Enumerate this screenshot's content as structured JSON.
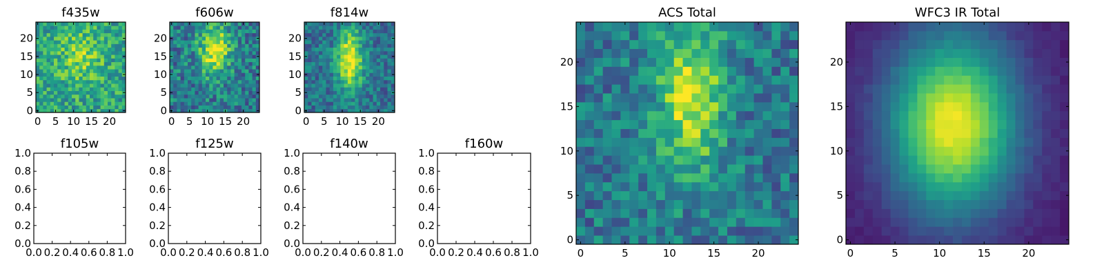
{
  "chart_data": [
    {
      "id": "f435w",
      "type": "heatmap",
      "title": "f435w",
      "colormap": "viridis",
      "grid_size": 25,
      "xticks": [
        "0",
        "5",
        "10",
        "15",
        "20"
      ],
      "yticks": [
        "0",
        "5",
        "10",
        "15",
        "20"
      ],
      "seed": 435,
      "peak_x": 12,
      "peak_y": 15,
      "signal": 0.25,
      "noise": 0.42,
      "base": 0.58,
      "spread_x": 4,
      "spread_y": 5
    },
    {
      "id": "f606w",
      "type": "heatmap",
      "title": "f606w",
      "colormap": "viridis",
      "grid_size": 25,
      "xticks": [
        "0",
        "5",
        "10",
        "15",
        "20"
      ],
      "yticks": [
        "0",
        "5",
        "10",
        "15",
        "20"
      ],
      "seed": 606,
      "peak_x": 12,
      "peak_y": 17,
      "signal": 0.55,
      "noise": 0.45,
      "base": 0.42,
      "spread_x": 3,
      "spread_y": 5
    },
    {
      "id": "f814w",
      "type": "heatmap",
      "title": "f814w",
      "colormap": "viridis",
      "grid_size": 25,
      "xticks": [
        "0",
        "5",
        "10",
        "15",
        "20"
      ],
      "yticks": [
        "0",
        "5",
        "10",
        "15",
        "20"
      ],
      "seed": 814,
      "peak_x": 12,
      "peak_y": 14,
      "signal": 0.65,
      "noise": 0.35,
      "base": 0.38,
      "spread_x": 2.5,
      "spread_y": 6
    },
    {
      "id": "f105w",
      "type": "empty",
      "title": "f105w",
      "xticks": [
        "0.0",
        "0.2",
        "0.4",
        "0.6",
        "0.8",
        "1.0"
      ],
      "yticks": [
        "0.0",
        "0.2",
        "0.4",
        "0.6",
        "0.8",
        "1.0"
      ],
      "xlim": [
        0,
        1
      ],
      "ylim": [
        0,
        1
      ]
    },
    {
      "id": "f125w",
      "type": "empty",
      "title": "f125w",
      "xticks": [
        "0.0",
        "0.2",
        "0.4",
        "0.6",
        "0.8",
        "1.0"
      ],
      "yticks": [
        "0.0",
        "0.2",
        "0.4",
        "0.6",
        "0.8",
        "1.0"
      ],
      "xlim": [
        0,
        1
      ],
      "ylim": [
        0,
        1
      ]
    },
    {
      "id": "f140w",
      "type": "empty",
      "title": "f140w",
      "xticks": [
        "0.0",
        "0.2",
        "0.4",
        "0.6",
        "0.8",
        "1.0"
      ],
      "yticks": [
        "0.0",
        "0.2",
        "0.4",
        "0.6",
        "0.8",
        "1.0"
      ],
      "xlim": [
        0,
        1
      ],
      "ylim": [
        0,
        1
      ]
    },
    {
      "id": "f160w",
      "type": "empty",
      "title": "f160w",
      "xticks": [
        "0.0",
        "0.2",
        "0.4",
        "0.6",
        "0.8",
        "1.0"
      ],
      "yticks": [
        "0.0",
        "0.2",
        "0.4",
        "0.6",
        "0.8",
        "1.0"
      ],
      "xlim": [
        0,
        1
      ],
      "ylim": [
        0,
        1
      ]
    },
    {
      "id": "acs-total",
      "type": "heatmap",
      "title": "ACS Total",
      "colormap": "viridis",
      "grid_size": 25,
      "xticks": [
        "0",
        "5",
        "10",
        "15",
        "20"
      ],
      "yticks": [
        "0",
        "5",
        "10",
        "15",
        "20"
      ],
      "seed": 101,
      "peak_x": 12.5,
      "peak_y": 16,
      "signal": 0.55,
      "noise": 0.38,
      "base": 0.4,
      "spread_x": 2.6,
      "spread_y": 6
    },
    {
      "id": "wfc3-ir-total",
      "type": "heatmap",
      "title": "WFC3 IR Total",
      "colormap": "viridis",
      "grid_size": 25,
      "xticks": [
        "0",
        "5",
        "10",
        "15",
        "20"
      ],
      "yticks": [
        "0",
        "5",
        "10",
        "15",
        "20"
      ],
      "seed": 202,
      "peak_x": 11.5,
      "peak_y": 13,
      "signal": 0.9,
      "noise": 0.06,
      "base": 0.08,
      "spread_x": 5,
      "spread_y": 7
    }
  ]
}
